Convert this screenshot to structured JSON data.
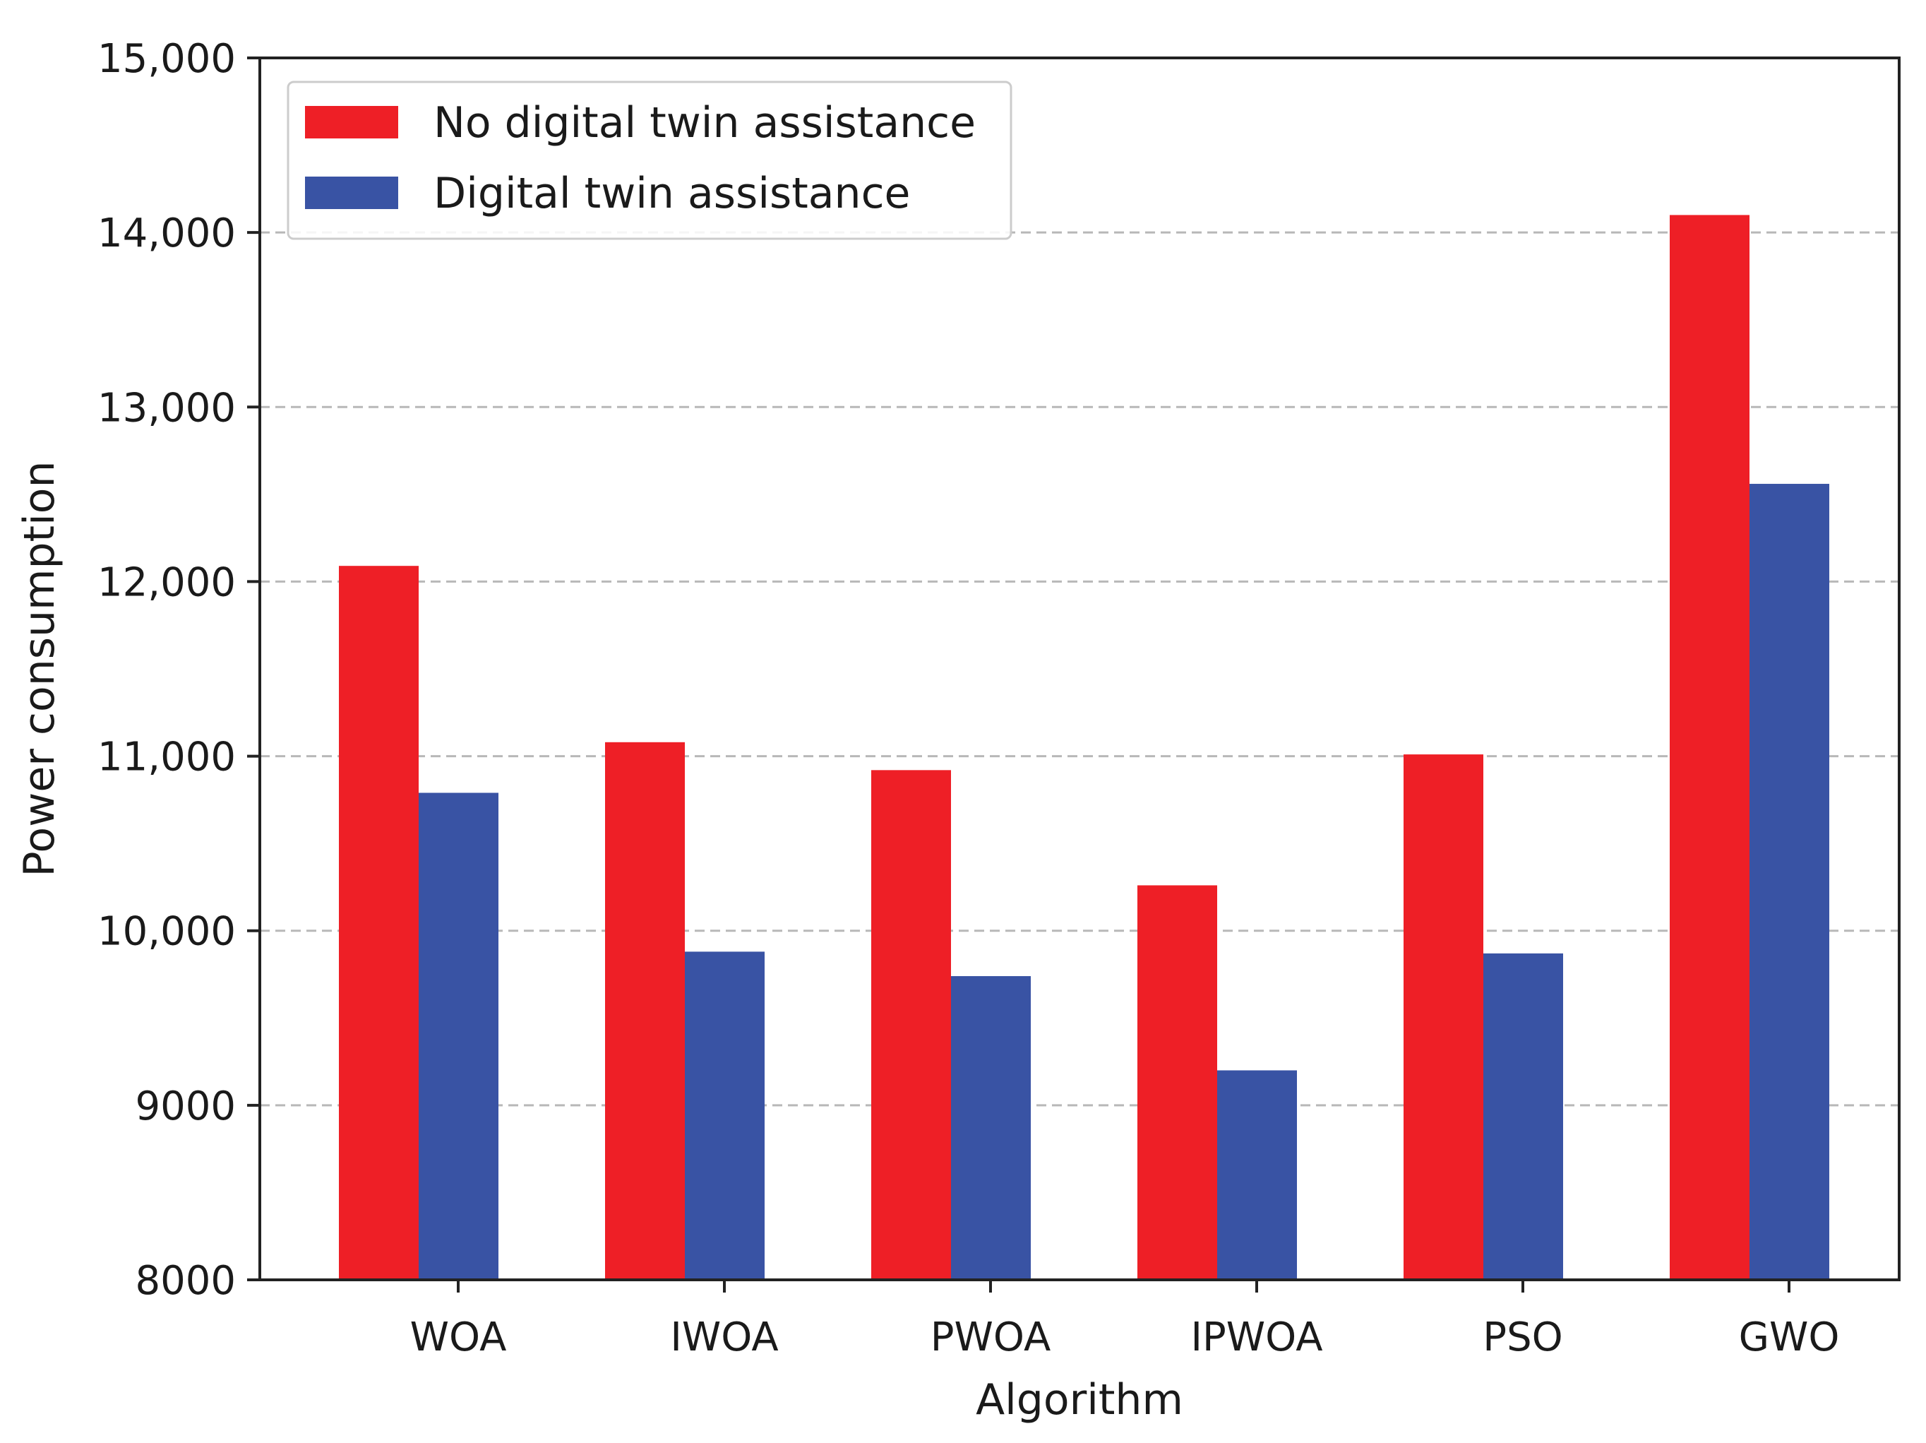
{
  "chart_data": {
    "type": "bar",
    "title": "",
    "xlabel": "Algorithm",
    "ylabel": "Power consumption",
    "categories": [
      "WOA",
      "IWOA",
      "PWOA",
      "IPWOA",
      "PSO",
      "GWO"
    ],
    "series": [
      {
        "name": "No digital twin assistance",
        "color": "#ee1f26",
        "values": [
          12090,
          11080,
          10920,
          10260,
          11010,
          14100
        ]
      },
      {
        "name": "Digital twin assistance",
        "color": "#3953a4",
        "values": [
          10790,
          9880,
          9740,
          9200,
          9870,
          12560
        ]
      }
    ],
    "ylim": [
      8000,
      15000
    ],
    "yticks": [
      8000,
      9000,
      10000,
      11000,
      12000,
      13000,
      14000,
      15000
    ],
    "ytick_labels": [
      "8000",
      "9000",
      "10,000",
      "11,000",
      "12,000",
      "13,000",
      "14,000",
      "15,000"
    ],
    "grid": "horizontal dashed",
    "legend_position": "top-left"
  }
}
